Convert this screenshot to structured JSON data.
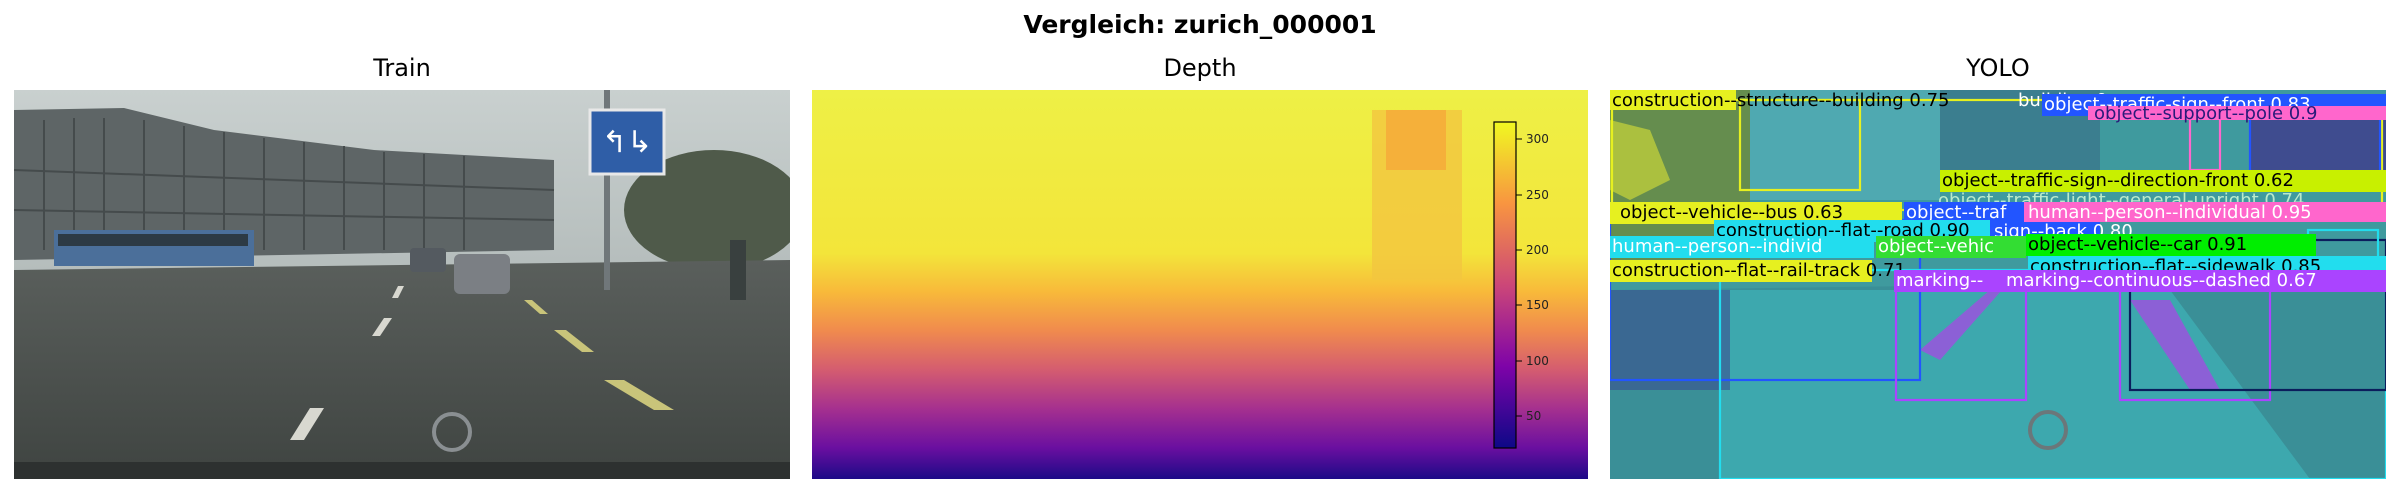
{
  "figure": {
    "suptitle": "Vergleich: zurich_000001"
  },
  "panels": [
    {
      "id": "train",
      "title": "Train"
    },
    {
      "id": "depth",
      "title": "Depth"
    },
    {
      "id": "yolo",
      "title": "YOLO"
    }
  ],
  "train_scene": {
    "sign_arrows": "↰↳"
  },
  "depth_colorbar": {
    "colormap": "plasma",
    "ticks": [
      "50",
      "100",
      "150",
      "200",
      "250",
      "300"
    ]
  },
  "detections": [
    {
      "label": "construction--structure--building 0.75",
      "color": "#e6f020"
    },
    {
      "label": "building 0.",
      "color": "#ffffff"
    },
    {
      "label": "object--traffic-sign--front 0.83",
      "color": "#ffffff"
    },
    {
      "label": "object--support--pole 0.9",
      "color": "#ff66cc"
    },
    {
      "label": "object--traffic-sign--direction-front 0.62",
      "color": "#c8f000"
    },
    {
      "label": "object--traffic-light--general-upright 0.74",
      "color": "#88ff88"
    },
    {
      "label": "object--vehicle--bus 0.63",
      "color": "#e6f020"
    },
    {
      "label": "object--traf",
      "color": "#2255ff"
    },
    {
      "label": "human--person--individual 0.95",
      "color": "#ff66cc"
    },
    {
      "label": "construction--flat--road 0.90",
      "color": "#22ddee"
    },
    {
      "label": "sign--back 0.80",
      "color": "#2255ff"
    },
    {
      "label": "human--person--individ",
      "color": "#22ddee"
    },
    {
      "label": "object--vehic",
      "color": "#33dd33"
    },
    {
      "label": "object--vehicle--car 0.91",
      "color": "#00ee00"
    },
    {
      "label": "construction--flat--rail-track 0.71",
      "color": "#e6f020"
    },
    {
      "label": "construction--flat--sidewalk 0.85",
      "color": "#22ddee"
    },
    {
      "label": "marking--",
      "color": "#aa44ff"
    },
    {
      "label": "marking--continuous--dashed 0.67",
      "color": "#aa44ff"
    }
  ]
}
